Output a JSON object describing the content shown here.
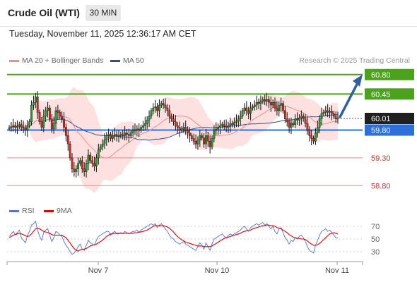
{
  "header": {
    "title": "Crude Oil (WTI)",
    "timeframe": "30 MIN",
    "datetime": "Tuesday, November 11, 2025 12:36:17 AM CET"
  },
  "legend": {
    "ma20": "MA 20 + Bollinger Bands",
    "ma50": "MA 50",
    "ma20_color": "#f08c8c",
    "ma50_color": "#2f4f8f",
    "credit": "Research © 2025 Trading Central"
  },
  "rsi_legend": {
    "rsi": "RSI",
    "ma": "9MA",
    "rsi_color": "#4f74d8",
    "ma_color": "#e00000"
  },
  "chart_data": [
    {
      "type": "candlestick",
      "x_labels": [
        "Nov 7",
        "Nov 10",
        "Nov 11"
      ],
      "y_range": [
        58.55,
        61.0
      ],
      "current_price": "60.01",
      "levels": [
        {
          "label": "60.80",
          "value": 60.8,
          "kind": "resistance",
          "color": "#4aa31a"
        },
        {
          "label": "60.45",
          "value": 60.45,
          "kind": "resistance",
          "color": "#4aa31a"
        },
        {
          "label": "59.80",
          "value": 59.8,
          "kind": "pivot",
          "color": "#2e6fd9"
        },
        {
          "label": "59.30",
          "value": 59.3,
          "kind": "support",
          "color": "#e88c8c"
        },
        {
          "label": "58.80",
          "value": 58.8,
          "kind": "support",
          "color": "#e88c8c"
        }
      ],
      "forecast": {
        "from": 60.01,
        "to": 60.8,
        "color": "#2f5f9f"
      },
      "closes": [
        59.84,
        59.86,
        59.88,
        59.85,
        59.87,
        59.9,
        59.85,
        59.83,
        59.8,
        59.88,
        59.95,
        60.25,
        60.3,
        60.4,
        60.12,
        59.95,
        59.85,
        60.05,
        60.15,
        60.2,
        60.0,
        59.82,
        59.92,
        60.15,
        60.12,
        60.05,
        60.0,
        59.85,
        59.7,
        59.55,
        59.3,
        59.1,
        59.05,
        59.1,
        59.2,
        59.25,
        59.1,
        59.05,
        59.2,
        59.35,
        59.25,
        59.2,
        59.15,
        59.3,
        59.45,
        59.5,
        59.55,
        59.62,
        59.7,
        59.72,
        59.65,
        59.7,
        59.72,
        59.7,
        59.7,
        59.72,
        59.7,
        59.75,
        59.72,
        59.7,
        59.75,
        59.8,
        59.8,
        59.82,
        59.8,
        59.85,
        59.88,
        59.92,
        59.98,
        60.05,
        60.15,
        60.2,
        60.22,
        60.15,
        60.25,
        60.28,
        60.25,
        60.2,
        60.15,
        60.05,
        60.0,
        59.95,
        59.88,
        59.85,
        59.8,
        59.82,
        59.85,
        59.8,
        59.75,
        59.7,
        59.65,
        59.6,
        59.55,
        59.62,
        59.7,
        59.66,
        59.55,
        59.7,
        59.6,
        59.5,
        59.65,
        59.8,
        59.82,
        59.85,
        59.88,
        59.9,
        59.87,
        59.85,
        59.88,
        59.92,
        59.9,
        59.94,
        59.96,
        60.0,
        60.05,
        60.15,
        60.2,
        60.15,
        60.1,
        60.2,
        60.22,
        60.25,
        60.3,
        60.28,
        60.32,
        60.35,
        60.32,
        60.35,
        60.3,
        60.25,
        60.3,
        60.2,
        60.15,
        60.25,
        60.28,
        60.15,
        60.0,
        59.95,
        59.85,
        59.92,
        59.9,
        60.0,
        59.98,
        60.02,
        60.05,
        60.0,
        59.92,
        59.8,
        59.7,
        59.65,
        59.6,
        59.75,
        59.85,
        60.0,
        60.1,
        60.12,
        60.15,
        60.12,
        60.14,
        60.1,
        60.05,
        60.0,
        60.01
      ]
    },
    {
      "type": "line",
      "title": "RSI",
      "y_ticks": [
        70,
        50,
        30
      ],
      "series": [
        {
          "name": "RSI",
          "values": [
            54,
            58,
            62,
            57,
            60,
            64,
            52,
            48,
            44,
            55,
            62,
            72,
            74,
            78,
            64,
            54,
            48,
            60,
            64,
            66,
            56,
            46,
            52,
            62,
            60,
            56,
            54,
            46,
            40,
            36,
            30,
            26,
            28,
            32,
            38,
            42,
            34,
            32,
            40,
            48,
            44,
            42,
            40,
            48,
            54,
            56,
            58,
            60,
            62,
            62,
            56,
            60,
            62,
            58,
            58,
            60,
            58,
            62,
            60,
            58,
            60,
            62,
            62,
            64,
            60,
            64,
            66,
            68,
            70,
            72,
            74,
            72,
            74,
            68,
            72,
            74,
            70,
            66,
            62,
            56,
            52,
            50,
            46,
            44,
            42,
            44,
            46,
            42,
            40,
            38,
            36,
            34,
            32,
            38,
            44,
            40,
            34,
            44,
            38,
            32,
            42,
            50,
            52,
            54,
            56,
            58,
            54,
            52,
            56,
            58,
            56,
            58,
            60,
            62,
            64,
            68,
            70,
            66,
            62,
            68,
            70,
            72,
            74,
            72,
            74,
            76,
            72,
            74,
            70,
            66,
            70,
            62,
            58,
            66,
            68,
            60,
            52,
            48,
            42,
            48,
            46,
            52,
            50,
            54,
            56,
            52,
            46,
            38,
            32,
            30,
            28,
            40,
            48,
            56,
            62,
            64,
            66,
            62,
            64,
            60,
            56,
            52,
            52
          ]
        },
        {
          "name": "9MA",
          "values": [
            52,
            54,
            56,
            57,
            58,
            59,
            58,
            57,
            55,
            54,
            55,
            58,
            62,
            66,
            67,
            66,
            64,
            62,
            61,
            60,
            59,
            57,
            56,
            56,
            56,
            56,
            56,
            54,
            52,
            48,
            44,
            39,
            35,
            32,
            31,
            33,
            34,
            34,
            35,
            37,
            39,
            40,
            41,
            42,
            44,
            46,
            48,
            51,
            54,
            56,
            58,
            58,
            59,
            59,
            59,
            59,
            59,
            59,
            59,
            59,
            59,
            59,
            60,
            60,
            61,
            61,
            62,
            63,
            64,
            66,
            68,
            70,
            71,
            71,
            71,
            71,
            71,
            70,
            69,
            67,
            64,
            61,
            57,
            54,
            51,
            49,
            47,
            45,
            44,
            43,
            42,
            41,
            40,
            39,
            39,
            39,
            38,
            38,
            38,
            38,
            39,
            41,
            43,
            45,
            47,
            49,
            51,
            52,
            53,
            54,
            55,
            56,
            57,
            58,
            59,
            61,
            62,
            63,
            63,
            64,
            66,
            67,
            68,
            69,
            70,
            71,
            71,
            72,
            72,
            71,
            71,
            70,
            68,
            67,
            66,
            64,
            62,
            60,
            57,
            55,
            53,
            52,
            51,
            51,
            50,
            50,
            49,
            47,
            44,
            42,
            40,
            40,
            41,
            43,
            46,
            49,
            52,
            55,
            58,
            59,
            60,
            59,
            58
          ]
        }
      ]
    }
  ]
}
